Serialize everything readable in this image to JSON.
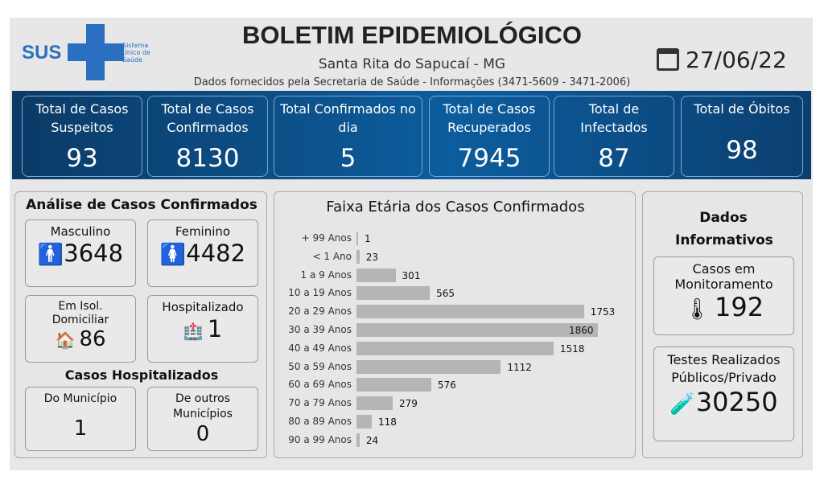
{
  "header": {
    "logo_text": "SUS",
    "logo_sub": "Sistema Único de Saúde",
    "title": "BOLETIM EPIDEMIOLÓGICO",
    "location": "Santa Rita do Sapucaí - MG",
    "source": "Dados fornecidos pela Secretaria de Saúde - Informações (3471-5609 - 3471-2006)",
    "date": "27/06/22",
    "brand_color": "#2a6fc0"
  },
  "kpis": [
    {
      "label": "Total de Casos Suspeitos",
      "value": "93"
    },
    {
      "label": "Total de Casos Confirmados",
      "value": "8130"
    },
    {
      "label": "Total Confirmados no dia",
      "value": "5"
    },
    {
      "label": "Total de Casos Recuperados",
      "value": "7945"
    },
    {
      "label": "Total de Infectados",
      "value": "87"
    },
    {
      "label": "Total de Óbitos",
      "value": "98"
    }
  ],
  "analysis": {
    "title": "Análise de Casos Confirmados",
    "male": {
      "label": "Masculino",
      "value": "3648"
    },
    "female": {
      "label": "Feminino",
      "value": "4482"
    },
    "home": {
      "label": "Em Isol. Domiciliar",
      "value": "86"
    },
    "hosp": {
      "label": "Hospitalizado",
      "value": "1"
    },
    "hosp_title": "Casos Hospitalizados",
    "muni": {
      "label": "Do Município",
      "value": "1"
    },
    "other": {
      "label": "De outros Municípios",
      "value": "0"
    }
  },
  "info": {
    "title": "Dados Informativos",
    "monitor": {
      "label": "Casos em Monitoramento",
      "value": "192"
    },
    "tests": {
      "label": "Testes Realizados Públicos/Privado",
      "value": "30250"
    }
  },
  "chart_data": {
    "type": "bar",
    "orientation": "horizontal",
    "title": "Faixa Etária dos Casos Confirmados",
    "categories": [
      "+ 99 Anos",
      "< 1 Ano",
      "1 a 9 Anos",
      "10 a 19 Anos",
      "20 a 29 Anos",
      "30 a 39 Anos",
      "40 a 49 Anos",
      "50 a 59 Anos",
      "60 a 69 Anos",
      "70 a 79 Anos",
      "80 a 89 Anos",
      "90 a 99 Anos"
    ],
    "values": [
      1,
      23,
      301,
      565,
      1753,
      1860,
      1518,
      1112,
      576,
      279,
      118,
      24
    ],
    "bar_color": "#b5b5b5",
    "grid": false
  }
}
